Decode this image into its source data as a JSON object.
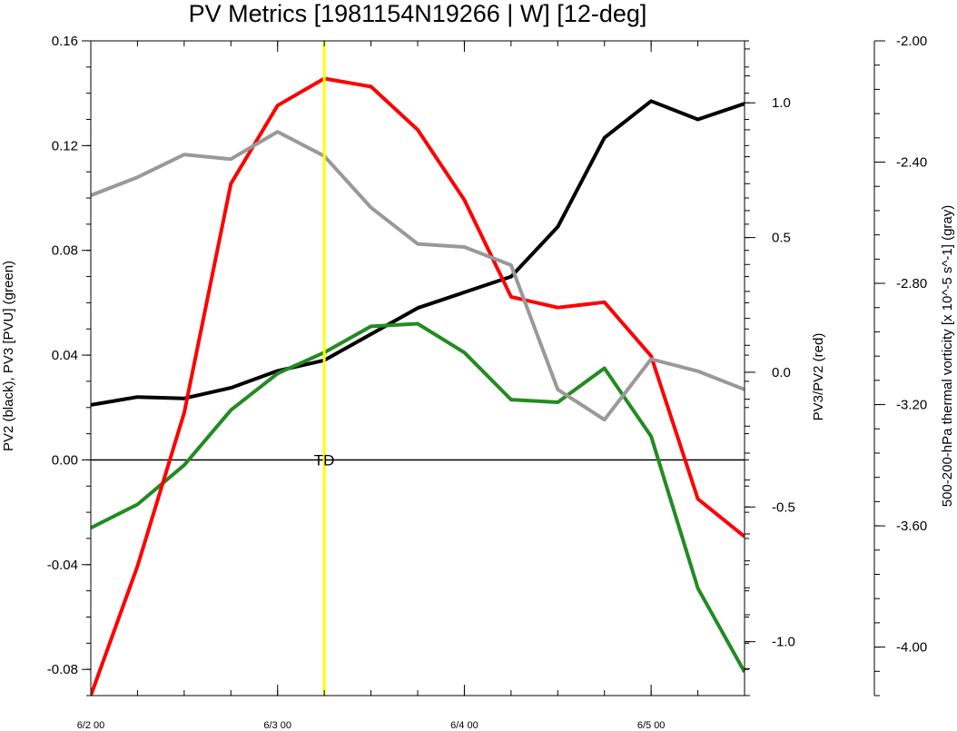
{
  "chart_data": {
    "type": "line",
    "title": "PV Metrics [1981154N19266 | W] [12-deg]",
    "x": {
      "tick_labels": [
        "6/2 00",
        "6/3 00",
        "6/4 00",
        "6/5 00"
      ],
      "tick_values": [
        0,
        24,
        48,
        72
      ],
      "range": [
        0,
        84
      ],
      "step_hours": 6
    },
    "y_left": {
      "label": "PV2 (black), PV3 [PVU] (green)",
      "range": [
        -0.09,
        0.16
      ],
      "tick_values": [
        -0.08,
        -0.04,
        0.0,
        0.04,
        0.08,
        0.12,
        0.16
      ],
      "tick_labels": [
        "-0.08",
        "-0.04",
        "0.00",
        "0.04",
        "0.08",
        "0.12",
        "0.16"
      ]
    },
    "y_right": {
      "label": "PV3/PV2 (red)",
      "range": [
        -1.2,
        1.23
      ],
      "tick_values": [
        -1.0,
        -0.5,
        0.0,
        0.5,
        1.0
      ],
      "tick_labels": [
        "-1.0",
        "-0.5",
        "0.0",
        "0.5",
        "1.0"
      ]
    },
    "y_far": {
      "label": "500-200-hPa thermal vorticity [x 10^-5 s^-1] (gray)",
      "range": [
        -4.16,
        -2.0
      ],
      "tick_values": [
        -4.0,
        -3.6,
        -3.2,
        -2.8,
        -2.4,
        -2.0
      ],
      "tick_labels": [
        "-4.00",
        "-3.60",
        "-3.20",
        "-2.80",
        "-2.40",
        "-2.00"
      ]
    },
    "zero_line": {
      "value": 0.0,
      "label": "TD"
    },
    "marker_line": {
      "x": 30,
      "color": "#ffff00"
    },
    "series": [
      {
        "color": "#000000",
        "axis": "left",
        "values": [
          0.021,
          0.024,
          0.0235,
          0.0275,
          0.034,
          0.038,
          0.048,
          0.058,
          0.064,
          0.07,
          0.089,
          0.123,
          0.137,
          0.13,
          0.136
        ]
      },
      {
        "color": "#228b22",
        "axis": "left",
        "values": [
          -0.026,
          -0.017,
          -0.002,
          0.019,
          0.033,
          0.041,
          0.051,
          0.052,
          0.041,
          0.023,
          0.022,
          0.035,
          0.009,
          -0.049,
          -0.081
        ]
      },
      {
        "color": "#ff0000",
        "axis": "right",
        "values": [
          -1.2,
          -0.72,
          -0.15,
          0.7,
          0.99,
          1.09,
          1.06,
          0.9,
          0.64,
          0.28,
          0.24,
          0.26,
          0.06,
          -0.47,
          -0.61
        ]
      },
      {
        "color": "#999999",
        "axis": "far",
        "values": [
          -2.51,
          -2.45,
          -2.375,
          -2.39,
          -2.3,
          -2.38,
          -2.55,
          -2.67,
          -2.68,
          -2.74,
          -3.15,
          -3.25,
          -3.05,
          -3.09,
          -3.15
        ]
      }
    ]
  }
}
